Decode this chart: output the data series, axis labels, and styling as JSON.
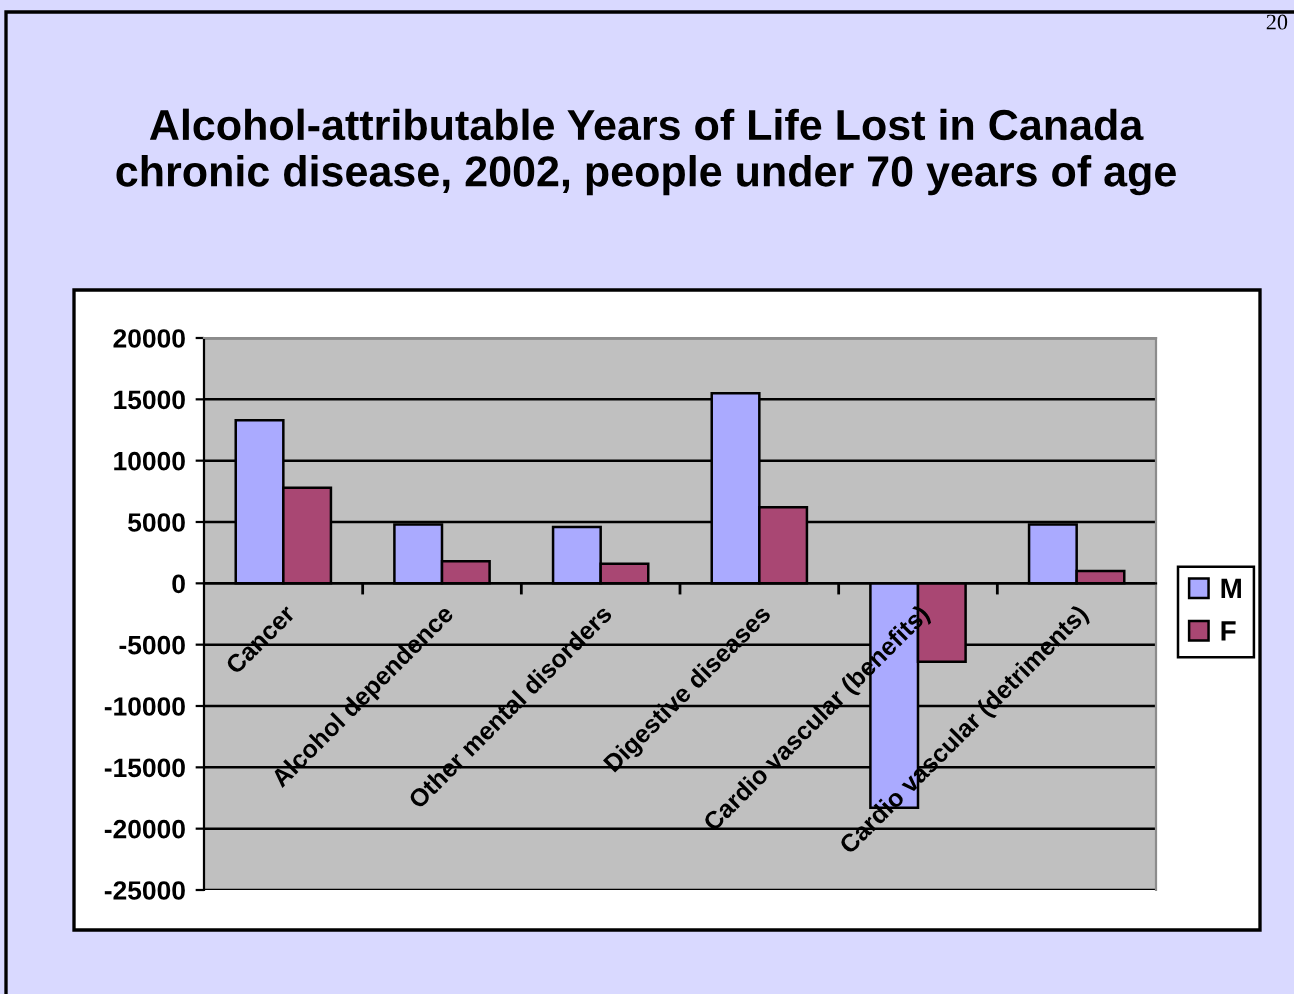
{
  "chart_data": {
    "type": "bar",
    "title": "Alcohol-attributable Years of Life Lost in Canada\nchronic disease, 2002, people under 70 years of age",
    "categories": [
      "Cancer",
      "Alcohol dependence",
      "Other mental disorders",
      "Digestive diseases",
      "Cardio vascular (benefits)",
      "Cardio vascular (detriments)"
    ],
    "series": [
      {
        "name": "M",
        "color": "#aaaaff",
        "values": [
          13300,
          4800,
          4600,
          15500,
          -18300,
          4800
        ]
      },
      {
        "name": "F",
        "color": "#a94773",
        "values": [
          7800,
          1800,
          1600,
          6200,
          -6400,
          1000
        ]
      }
    ],
    "ylim": [
      -25000,
      20000
    ],
    "yticks": [
      -25000,
      -20000,
      -15000,
      -10000,
      -5000,
      0,
      5000,
      10000,
      15000,
      20000
    ],
    "grid": "y",
    "legend": "right",
    "annotations": [
      "20"
    ]
  }
}
